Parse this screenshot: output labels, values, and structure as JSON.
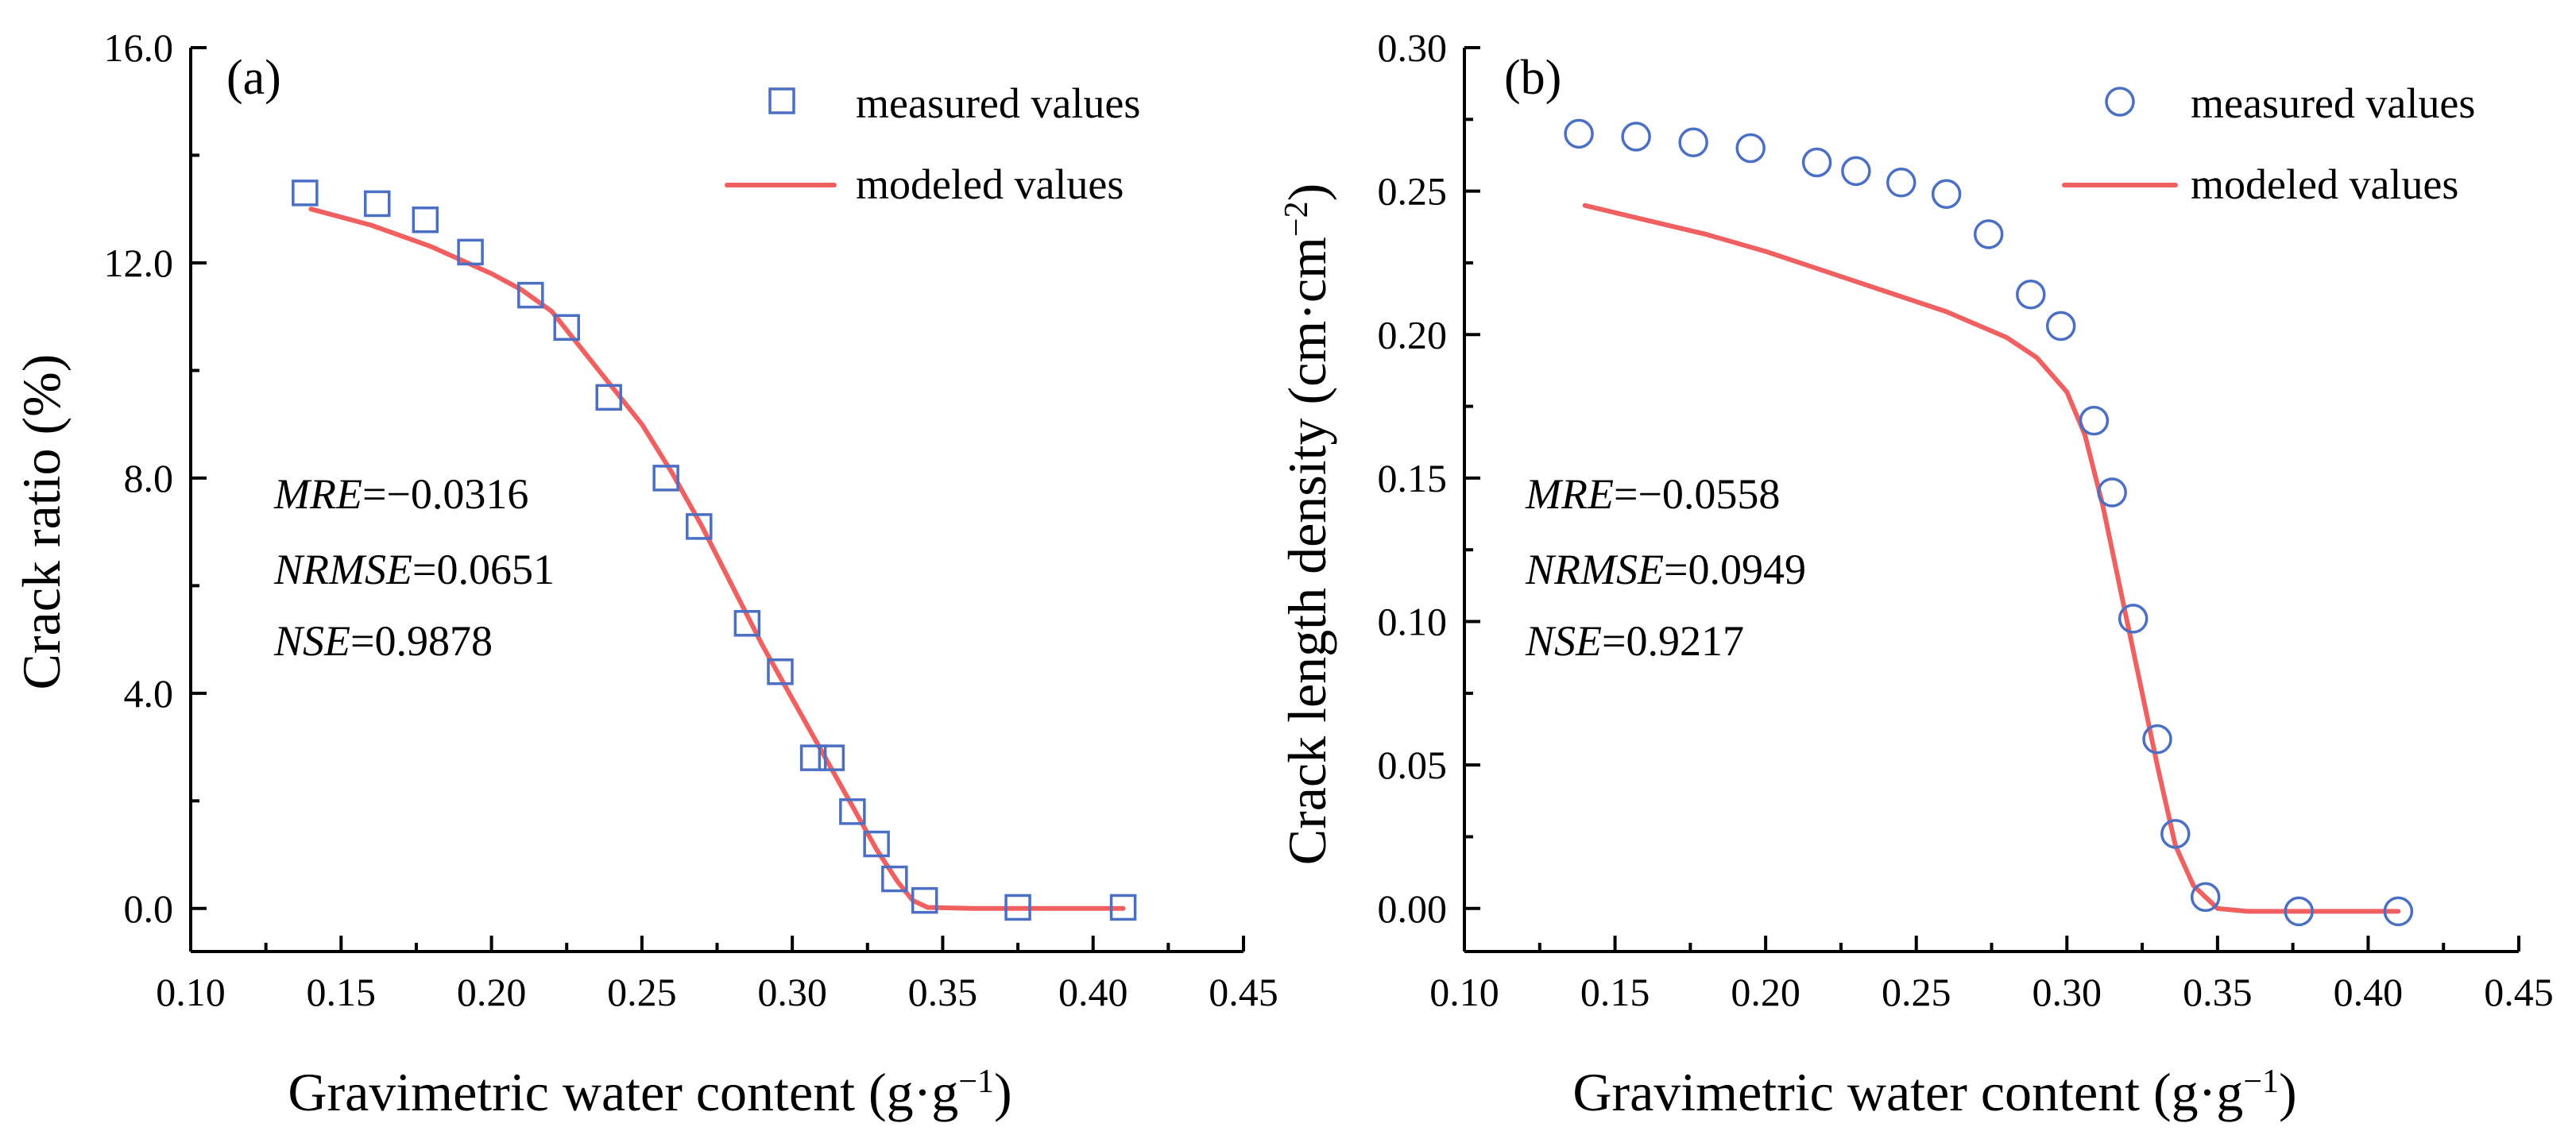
{
  "colors": {
    "measured": "#4a6fc4",
    "modeled": "#f06060",
    "axis": "#000000"
  },
  "chart_data": [
    {
      "panel": "(a)",
      "type": "scatter",
      "xlabel_main": "Gravimetric water content  (g·g",
      "xlabel_sup": "−1",
      "xlabel_end": ")",
      "ylabel": "Crack ratio (%)",
      "xlim": [
        0.1,
        0.45
      ],
      "ylim": [
        -0.8,
        16.0
      ],
      "xticks": [
        "0.10",
        "0.15",
        "0.20",
        "0.25",
        "0.30",
        "0.35",
        "0.40",
        "0.45"
      ],
      "yticks": [
        "0.0",
        "4.0",
        "8.0",
        "12.0",
        "16.0"
      ],
      "ytick_values": [
        0,
        4,
        8,
        12,
        16
      ],
      "marker": "square",
      "legend": {
        "measured": "measured values",
        "modeled": "modeled values",
        "position": "top-right"
      },
      "stats": [
        {
          "label": "MRE",
          "value": "=−0.0316"
        },
        {
          "label": "NRMSE",
          "value": "=0.0651"
        },
        {
          "label": "NSE",
          "value": "=0.9878"
        }
      ],
      "series": [
        {
          "name": "measured values",
          "points": [
            [
              0.138,
              13.3
            ],
            [
              0.162,
              13.1
            ],
            [
              0.178,
              12.8
            ],
            [
              0.193,
              12.2
            ],
            [
              0.213,
              11.4
            ],
            [
              0.225,
              10.8
            ],
            [
              0.239,
              9.5
            ],
            [
              0.258,
              8.0
            ],
            [
              0.269,
              7.1
            ],
            [
              0.285,
              5.3
            ],
            [
              0.296,
              4.4
            ],
            [
              0.307,
              2.8
            ],
            [
              0.313,
              2.8
            ],
            [
              0.32,
              1.8
            ],
            [
              0.328,
              1.2
            ],
            [
              0.334,
              0.55
            ],
            [
              0.344,
              0.15
            ],
            [
              0.375,
              0.02
            ],
            [
              0.41,
              0.02
            ]
          ]
        },
        {
          "name": "modeled values",
          "points": [
            [
              0.14,
              13.0
            ],
            [
              0.16,
              12.7
            ],
            [
              0.18,
              12.3
            ],
            [
              0.2,
              11.8
            ],
            [
              0.21,
              11.5
            ],
            [
              0.22,
              11.1
            ],
            [
              0.23,
              10.4
            ],
            [
              0.24,
              9.7
            ],
            [
              0.25,
              9.0
            ],
            [
              0.26,
              8.1
            ],
            [
              0.27,
              7.1
            ],
            [
              0.28,
              6.0
            ],
            [
              0.29,
              4.9
            ],
            [
              0.3,
              3.9
            ],
            [
              0.31,
              2.9
            ],
            [
              0.32,
              1.9
            ],
            [
              0.328,
              1.1
            ],
            [
              0.335,
              0.5
            ],
            [
              0.34,
              0.15
            ],
            [
              0.345,
              0.02
            ],
            [
              0.36,
              0.0
            ],
            [
              0.38,
              0.0
            ],
            [
              0.41,
              0.0
            ]
          ]
        }
      ]
    },
    {
      "panel": "(b)",
      "type": "scatter",
      "xlabel_main": "Gravimetric water content (g·g",
      "xlabel_sup": "−1",
      "xlabel_end": ")",
      "ylabel_main": "Crack length density (cm·cm",
      "ylabel_sup": "−2",
      "ylabel_end": ")",
      "xlim": [
        0.1,
        0.45
      ],
      "ylim": [
        -0.015,
        0.3
      ],
      "xticks": [
        "0.10",
        "0.15",
        "0.20",
        "0.25",
        "0.30",
        "0.35",
        "0.40",
        "0.45"
      ],
      "yticks": [
        "0.00",
        "0.05",
        "0.10",
        "0.15",
        "0.20",
        "0.25",
        "0.30"
      ],
      "ytick_values": [
        0,
        0.05,
        0.1,
        0.15,
        0.2,
        0.25,
        0.3
      ],
      "marker": "circle",
      "legend": {
        "measured": "measured values",
        "modeled": "modeled values",
        "position": "top-right"
      },
      "stats": [
        {
          "label": "MRE",
          "value": "=−0.0558"
        },
        {
          "label": "NRMSE",
          "value": "=0.0949"
        },
        {
          "label": "NSE",
          "value": "=0.9217"
        }
      ],
      "series": [
        {
          "name": "measured values",
          "points": [
            [
              0.138,
              0.27
            ],
            [
              0.157,
              0.269
            ],
            [
              0.176,
              0.267
            ],
            [
              0.195,
              0.265
            ],
            [
              0.217,
              0.26
            ],
            [
              0.23,
              0.257
            ],
            [
              0.245,
              0.253
            ],
            [
              0.26,
              0.249
            ],
            [
              0.274,
              0.235
            ],
            [
              0.288,
              0.214
            ],
            [
              0.298,
              0.203
            ],
            [
              0.309,
              0.17
            ],
            [
              0.315,
              0.145
            ],
            [
              0.322,
              0.101
            ],
            [
              0.33,
              0.059
            ],
            [
              0.336,
              0.026
            ],
            [
              0.346,
              0.004
            ],
            [
              0.377,
              -0.001
            ],
            [
              0.41,
              -0.001
            ]
          ]
        },
        {
          "name": "modeled values",
          "points": [
            [
              0.14,
              0.245
            ],
            [
              0.16,
              0.24
            ],
            [
              0.18,
              0.235
            ],
            [
              0.2,
              0.229
            ],
            [
              0.22,
              0.222
            ],
            [
              0.24,
              0.215
            ],
            [
              0.26,
              0.208
            ],
            [
              0.28,
              0.199
            ],
            [
              0.29,
              0.192
            ],
            [
              0.3,
              0.18
            ],
            [
              0.306,
              0.165
            ],
            [
              0.312,
              0.14
            ],
            [
              0.318,
              0.11
            ],
            [
              0.324,
              0.08
            ],
            [
              0.33,
              0.05
            ],
            [
              0.336,
              0.022
            ],
            [
              0.342,
              0.008
            ],
            [
              0.35,
              0.0
            ],
            [
              0.36,
              -0.001
            ],
            [
              0.38,
              -0.001
            ],
            [
              0.41,
              -0.001
            ]
          ]
        }
      ]
    }
  ]
}
